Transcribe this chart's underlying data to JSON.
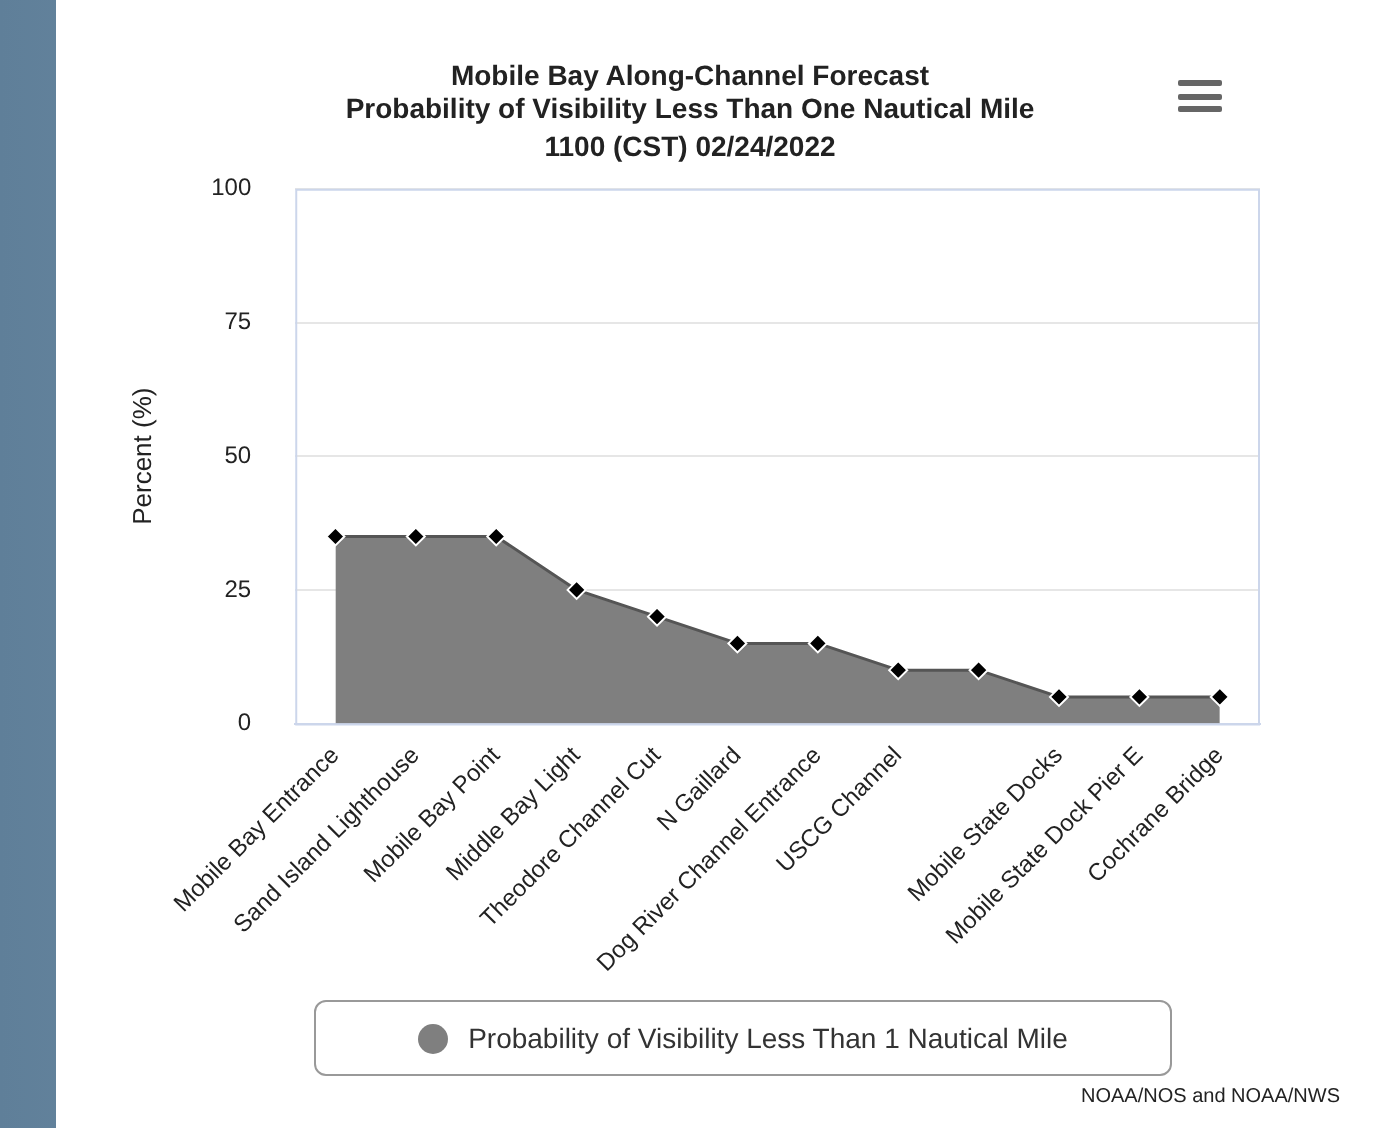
{
  "chart_data": {
    "type": "area",
    "title": "Mobile Bay Along-Channel Forecast\nProbability of Visibility Less Than One Nautical Mile",
    "subtitle": "1100 (CST) 02/24/2022",
    "ylabel": "Percent (%)",
    "categories": [
      "Mobile Bay Entrance",
      "Sand Island Lighthouse",
      "Mobile Bay Point",
      "Middle Bay Light",
      "Theodore Channel Cut",
      "N Gaillard",
      "Dog River Channel Entrance",
      "USCG Channel",
      null,
      "Mobile State Docks",
      "Mobile State Dock Pier E",
      "Cochrane Bridge"
    ],
    "series": [
      {
        "name": "Probability of Visibility Less Than 1 Nautical Mile",
        "color": "#7f7f7f",
        "values": [
          35,
          35,
          35,
          25,
          20,
          15,
          15,
          10,
          10,
          5,
          5,
          5
        ]
      }
    ],
    "ylim": [
      0,
      100
    ],
    "yticks": [
      0,
      25,
      50,
      75,
      100
    ],
    "grid": "y",
    "legend": "bottom",
    "marker": "diamond",
    "annotations": [
      "NOAA/NOS and NOAA/NWS"
    ]
  }
}
